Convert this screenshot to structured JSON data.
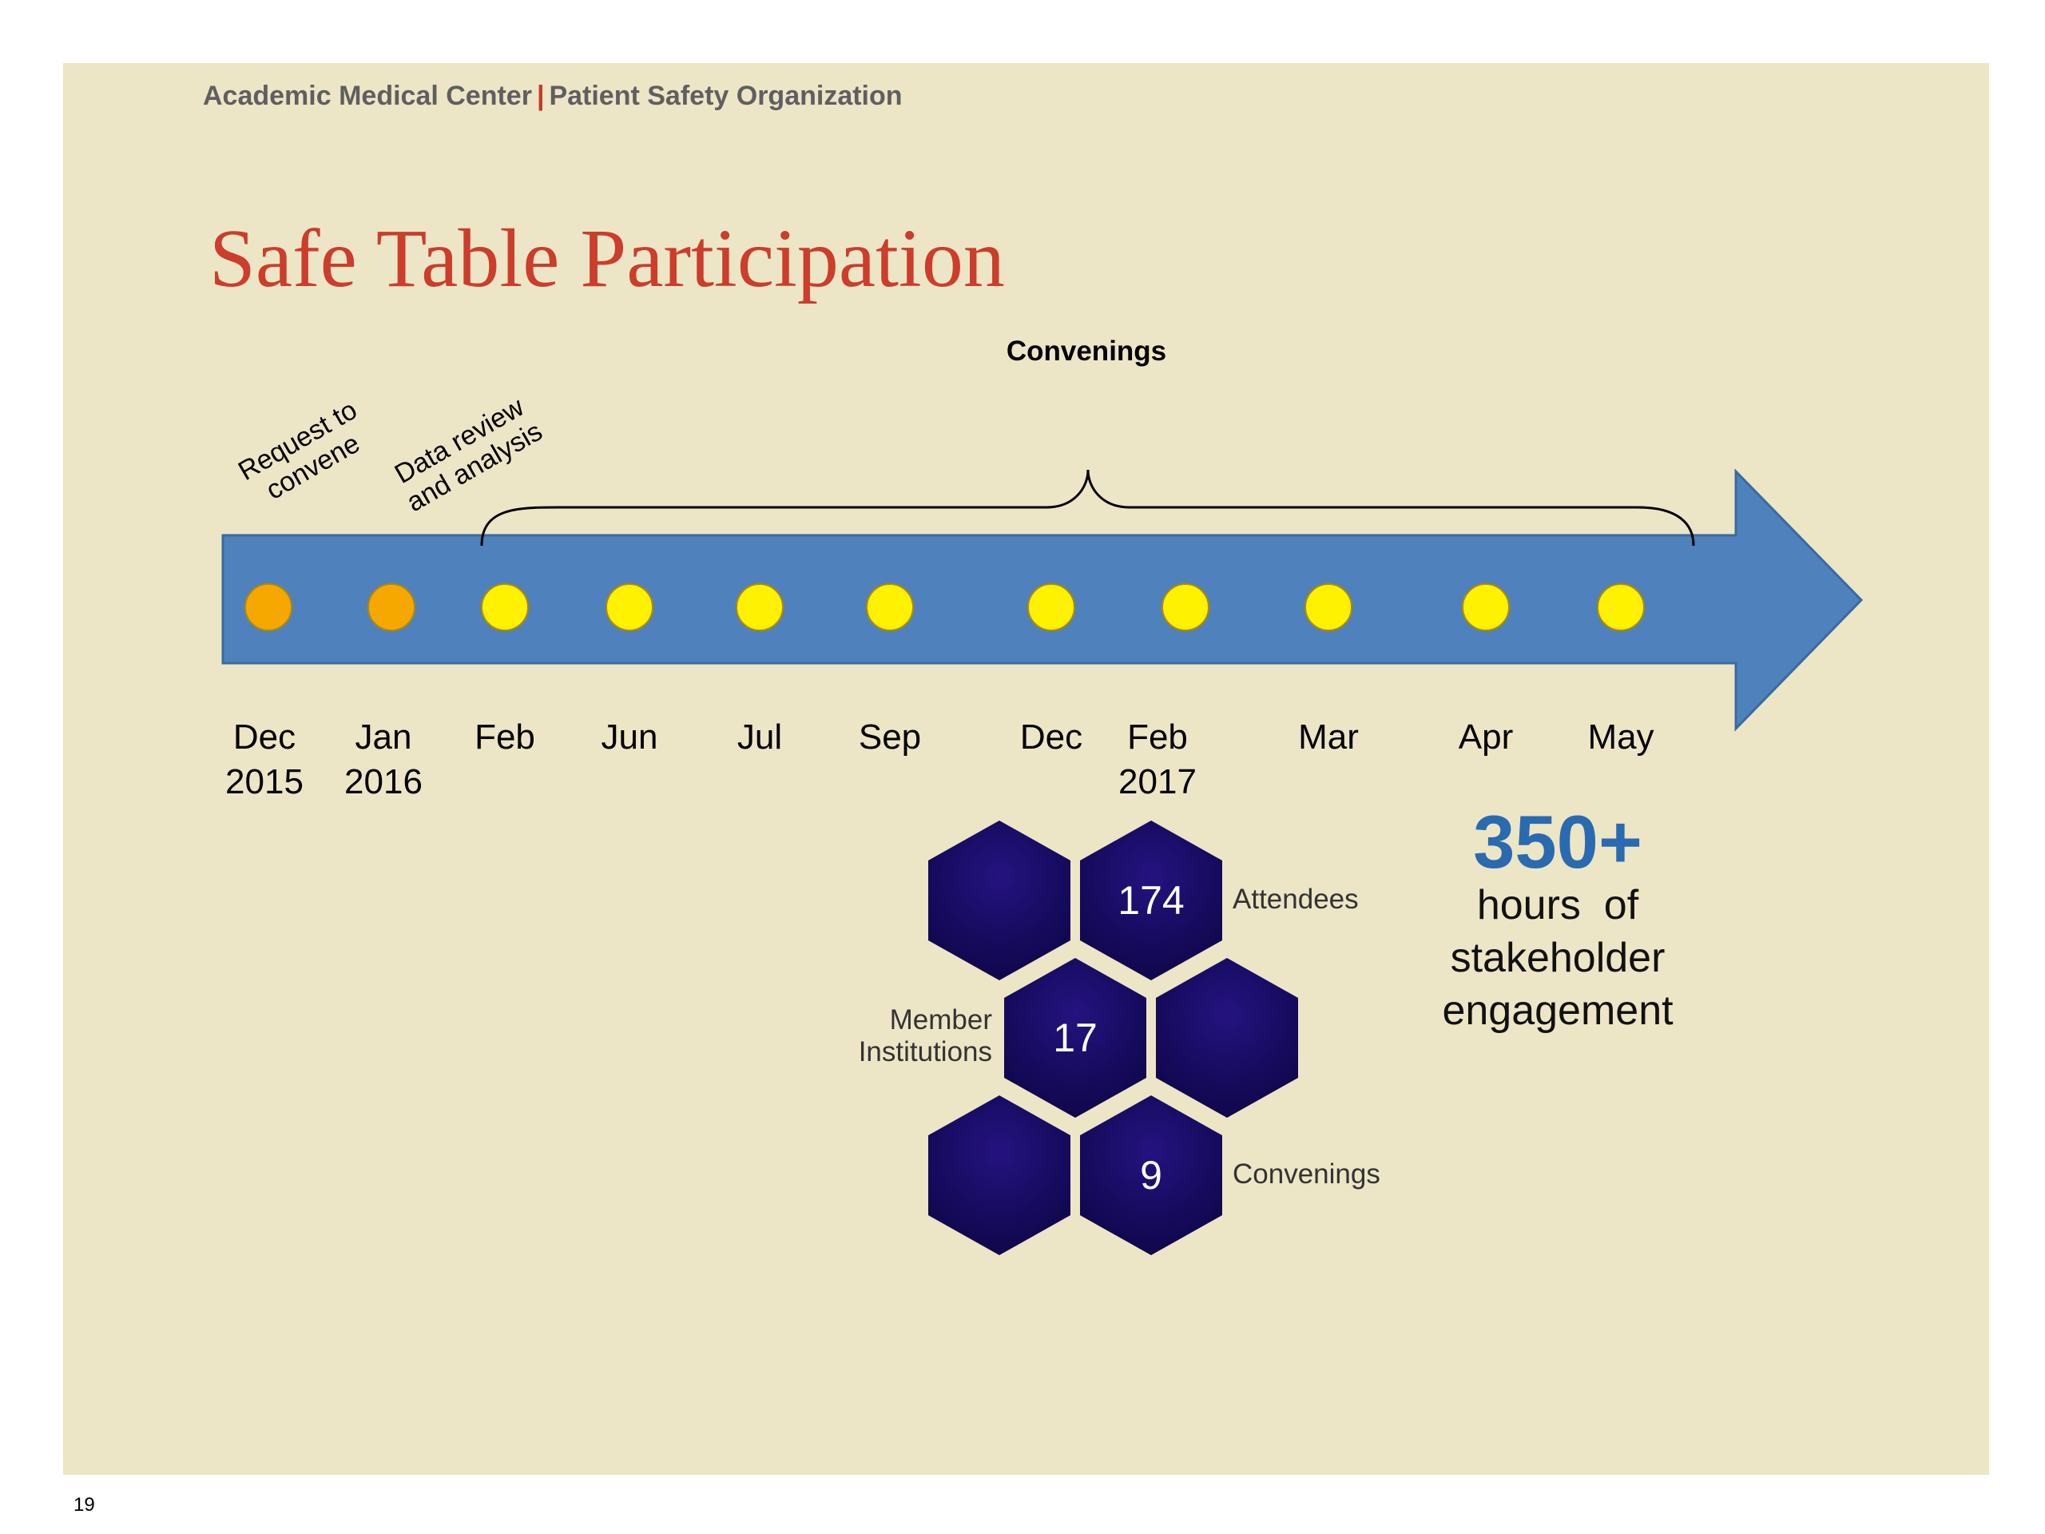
{
  "header": {
    "org_left": "Academic Medical Center",
    "separator": "|",
    "org_right": "Patient Safety Organization"
  },
  "title": "Safe Table Participation",
  "timeline": {
    "pre_phases": [
      {
        "label": "Request to\nconvene"
      },
      {
        "label": "Data review\nand analysis"
      }
    ],
    "convenings_label": "Convenings",
    "months": [
      {
        "line1": "Dec",
        "line2": "2015",
        "phase": "pre"
      },
      {
        "line1": "Jan",
        "line2": "2016",
        "phase": "pre"
      },
      {
        "line1": "Feb",
        "line2": "",
        "phase": "convening"
      },
      {
        "line1": "Jun",
        "line2": "",
        "phase": "convening"
      },
      {
        "line1": "Jul",
        "line2": "",
        "phase": "convening"
      },
      {
        "line1": "Sep",
        "line2": "",
        "phase": "convening"
      },
      {
        "line1": "Dec",
        "line2": "",
        "phase": "convening"
      },
      {
        "line1": "Feb",
        "line2": "2017",
        "phase": "convening"
      },
      {
        "line1": "Mar",
        "line2": "",
        "phase": "convening"
      },
      {
        "line1": "Apr",
        "line2": "",
        "phase": "convening"
      },
      {
        "line1": "May",
        "line2": "",
        "phase": "convening"
      }
    ],
    "colors": {
      "arrow": "#4f81bd",
      "pre_dot": "#f7a800",
      "convening_dot": "#fff200"
    }
  },
  "stats": {
    "attendees": {
      "value": "174",
      "label": "Attendees"
    },
    "institutions": {
      "value": "17",
      "label": "Member\nInstitutions"
    },
    "convenings": {
      "value": "9",
      "label": "Convenings"
    }
  },
  "engagement": {
    "value": "350+",
    "text": "hours  of\nstakeholder\nengagement"
  },
  "page_number": "19"
}
